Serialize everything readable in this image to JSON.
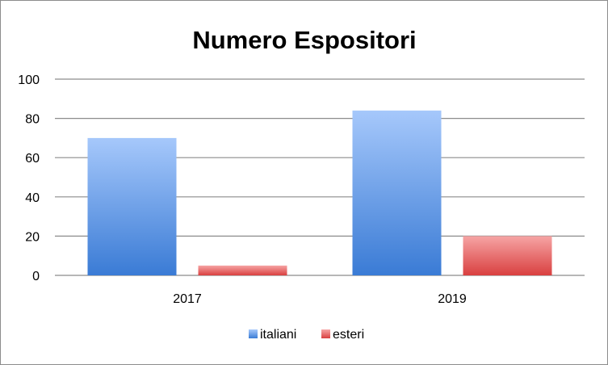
{
  "chart_data": {
    "type": "bar",
    "title": "Numero Espositori",
    "categories": [
      "2017",
      "2019"
    ],
    "series": [
      {
        "name": "italiani",
        "values": [
          70,
          84
        ],
        "color": "#4a86d8"
      },
      {
        "name": "esteri",
        "values": [
          5,
          20
        ],
        "color": "#d94a4a"
      }
    ],
    "ylim": [
      0,
      100
    ],
    "yticks": [
      0,
      20,
      40,
      60,
      80,
      100
    ],
    "grid": true,
    "legend_position": "bottom"
  }
}
